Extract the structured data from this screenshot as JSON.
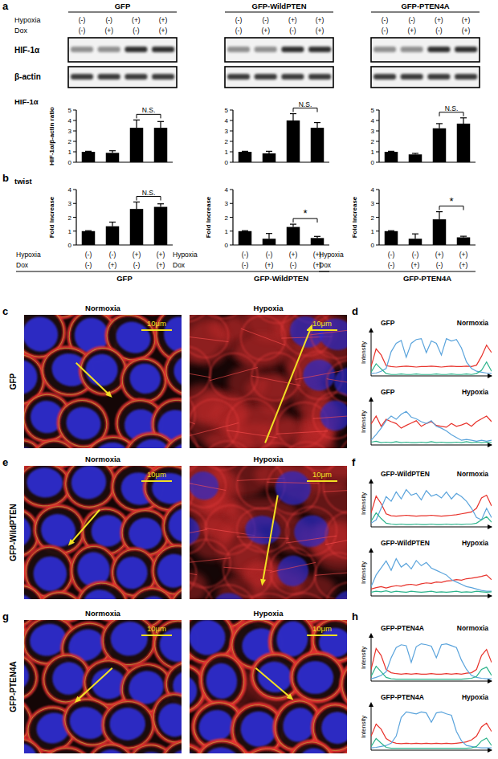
{
  "figure": {
    "panel_labels": [
      "a",
      "b",
      "c",
      "d",
      "e",
      "f",
      "g",
      "h"
    ],
    "blot": {
      "groups": [
        "GFP",
        "GFP-WildPTEN",
        "GFP-PTEN4A"
      ],
      "row_labels": [
        "Hypoxia",
        "Dox"
      ],
      "hypoxia": [
        "(-)",
        "(-)",
        "(+)",
        "(+)"
      ],
      "dox": [
        "(-)",
        "(+)",
        "(-)",
        "(+)"
      ],
      "bands": [
        "HIF-1α",
        "β-actin"
      ]
    },
    "images": {
      "rows": [
        "GFP",
        "GFP-WildPTEN",
        "GFP-PTEN4A"
      ],
      "columns": [
        "Normoxia",
        "Hypoxia"
      ],
      "scale_bar": "10μm"
    }
  },
  "chart_data": [
    {
      "type": "bar",
      "title": "HIF-1α",
      "y_label": "HIF-1α/β-actin ratio",
      "categories": [
        null,
        null,
        null,
        null
      ],
      "values": [
        1,
        0.9,
        3.3,
        3.3
      ],
      "errors": [
        0.05,
        0.2,
        0.75,
        0.6
      ],
      "color": "#000000",
      "ylim": [
        0,
        5
      ],
      "yticks": [
        0,
        1,
        2,
        3,
        4,
        5
      ],
      "annotations": [
        {
          "text": "N.S.",
          "categories": [
            2,
            3
          ]
        }
      ]
    },
    {
      "type": "bar",
      "categories": [
        null,
        null,
        null,
        null
      ],
      "values": [
        1,
        0.85,
        4.0,
        3.3
      ],
      "errors": [
        0.05,
        0.2,
        0.65,
        0.5
      ],
      "color": "#000000",
      "ylim": [
        0,
        5
      ],
      "yticks": [
        0,
        1,
        2,
        3,
        4,
        5
      ],
      "annotations": [
        {
          "text": "N.S.",
          "categories": [
            2,
            3
          ]
        }
      ]
    },
    {
      "type": "bar",
      "categories": [
        null,
        null,
        null,
        null
      ],
      "values": [
        1,
        0.75,
        3.25,
        3.7
      ],
      "errors": [
        0.05,
        0.1,
        0.45,
        0.55
      ],
      "color": "#000000",
      "ylim": [
        0,
        5
      ],
      "yticks": [
        0,
        1,
        2,
        3,
        4,
        5
      ],
      "annotations": [
        {
          "text": "N.S.",
          "categories": [
            2,
            3
          ]
        }
      ]
    },
    {
      "type": "bar",
      "title": "twist",
      "y_label": "Fold Increase",
      "x_label": "GFP",
      "categories": [
        null,
        null,
        null,
        null
      ],
      "values": [
        1,
        1.35,
        2.6,
        2.75
      ],
      "errors": [
        0.03,
        0.3,
        0.5,
        0.22
      ],
      "color": "#000000",
      "ylim": [
        0,
        4
      ],
      "yticks": [
        0,
        1,
        2,
        3,
        4
      ],
      "annotations": [
        {
          "text": "N.S.",
          "categories": [
            2,
            3
          ]
        }
      ]
    },
    {
      "type": "bar",
      "y_label": "Fold Increase",
      "x_label": "GFP-WildPTEN",
      "categories": [
        null,
        null,
        null,
        null
      ],
      "values": [
        1,
        0.45,
        1.3,
        0.5
      ],
      "errors": [
        0.03,
        0.38,
        0.2,
        0.12
      ],
      "color": "#000000",
      "ylim": [
        0,
        4
      ],
      "yticks": [
        0,
        1,
        2,
        3,
        4
      ],
      "annotations": [
        {
          "text": "*",
          "categories": [
            2,
            3
          ]
        }
      ]
    },
    {
      "type": "bar",
      "y_label": "Fold Increase",
      "x_label": "GFP-PTEN4A",
      "categories": [
        null,
        null,
        null,
        null
      ],
      "values": [
        1,
        0.45,
        1.85,
        0.55
      ],
      "errors": [
        0.03,
        0.35,
        0.55,
        0.08
      ],
      "color": "#000000",
      "ylim": [
        0,
        4
      ],
      "yticks": [
        0,
        1,
        2,
        3,
        4
      ],
      "annotations": [
        {
          "text": "*",
          "categories": [
            2,
            3
          ]
        }
      ]
    },
    {
      "type": "line",
      "title": "GFP",
      "subtitle": "Normoxia",
      "y_label": "Intensity",
      "x": [
        0,
        1,
        2,
        3,
        4,
        5,
        6,
        7,
        8,
        9,
        10,
        11,
        12,
        13,
        14,
        15,
        16,
        17,
        18,
        19,
        20,
        21,
        22,
        23,
        24
      ],
      "xlim": [
        0,
        24
      ],
      "ylim": [
        0,
        100
      ],
      "tick_labels": false,
      "series": [
        {
          "color": "#e8322b",
          "values": [
            20,
            58,
            45,
            22,
            20,
            19,
            20,
            21,
            20,
            19,
            20,
            20,
            21,
            20,
            19,
            20,
            21,
            20,
            20,
            21,
            20,
            23,
            42,
            66,
            50
          ]
        },
        {
          "color": "#5ba4dc",
          "values": [
            5,
            6,
            10,
            16,
            52,
            70,
            76,
            40,
            70,
            78,
            80,
            50,
            75,
            70,
            45,
            80,
            75,
            78,
            60,
            30,
            16,
            10,
            8,
            6,
            5
          ]
        },
        {
          "color": "#2db48c",
          "values": [
            8,
            26,
            15,
            5,
            3,
            3,
            4,
            3,
            3,
            4,
            3,
            3,
            3,
            4,
            3,
            3,
            4,
            3,
            3,
            4,
            3,
            5,
            12,
            30,
            10
          ]
        }
      ]
    },
    {
      "type": "line",
      "title": "GFP",
      "subtitle": "Hypoxia",
      "y_label": "Intensity",
      "x": [
        0,
        1,
        2,
        3,
        4,
        5,
        6,
        7,
        8,
        9,
        10,
        11,
        12,
        13,
        14,
        15,
        16,
        17,
        18,
        19,
        20,
        21,
        22,
        23,
        24
      ],
      "xlim": [
        0,
        24
      ],
      "ylim": [
        0,
        100
      ],
      "tick_labels": false,
      "series": [
        {
          "color": "#e8322b",
          "values": [
            45,
            62,
            40,
            55,
            50,
            46,
            36,
            42,
            47,
            52,
            40,
            46,
            50,
            42,
            40,
            38,
            46,
            40,
            43,
            47,
            40,
            50,
            56,
            62,
            50
          ]
        },
        {
          "color": "#5ba4dc",
          "values": [
            10,
            22,
            36,
            52,
            62,
            55,
            66,
            72,
            60,
            56,
            50,
            46,
            52,
            40,
            36,
            30,
            22,
            16,
            10,
            12,
            10,
            8,
            10,
            8,
            10
          ]
        },
        {
          "color": "#2db48c",
          "values": [
            6,
            8,
            5,
            6,
            5,
            7,
            5,
            6,
            5,
            5,
            6,
            5,
            7,
            5,
            6,
            5,
            5,
            6,
            5,
            7,
            5,
            6,
            5,
            6,
            5
          ]
        }
      ]
    },
    {
      "type": "line",
      "title": "GFP-WildPTEN",
      "subtitle": "Normoxia",
      "y_label": "Intensity",
      "x": [
        0,
        1,
        2,
        3,
        4,
        5,
        6,
        7,
        8,
        9,
        10,
        11,
        12,
        13,
        14,
        15,
        16,
        17,
        18,
        19,
        20,
        21,
        22,
        23,
        24
      ],
      "xlim": [
        0,
        24
      ],
      "ylim": [
        0,
        100
      ],
      "tick_labels": false,
      "series": [
        {
          "color": "#e8322b",
          "values": [
            30,
            66,
            50,
            28,
            24,
            23,
            24,
            25,
            24,
            23,
            24,
            24,
            25,
            24,
            23,
            24,
            25,
            26,
            28,
            30,
            32,
            40,
            62,
            68,
            45
          ]
        },
        {
          "color": "#5ba4dc",
          "values": [
            8,
            15,
            40,
            65,
            55,
            75,
            60,
            80,
            68,
            72,
            58,
            78,
            66,
            70,
            62,
            75,
            60,
            72,
            65,
            55,
            40,
            20,
            15,
            40,
            20
          ]
        },
        {
          "color": "#2db48c",
          "values": [
            12,
            30,
            18,
            8,
            6,
            5,
            6,
            5,
            5,
            6,
            5,
            5,
            6,
            5,
            5,
            6,
            5,
            6,
            5,
            6,
            6,
            8,
            15,
            22,
            10
          ]
        }
      ]
    },
    {
      "type": "line",
      "title": "GFP-WildPTEN",
      "subtitle": "Hypoxia",
      "y_label": "Intensity",
      "x": [
        0,
        1,
        2,
        3,
        4,
        5,
        6,
        7,
        8,
        9,
        10,
        11,
        12,
        13,
        14,
        15,
        16,
        17,
        18,
        19,
        20,
        21,
        22,
        23,
        24
      ],
      "xlim": [
        0,
        24
      ],
      "ylim": [
        0,
        100
      ],
      "tick_labels": false,
      "series": [
        {
          "color": "#e8322b",
          "values": [
            15,
            18,
            20,
            17,
            20,
            22,
            21,
            24,
            25,
            23,
            26,
            28,
            27,
            30,
            29,
            32,
            33,
            35,
            34,
            37,
            38,
            40,
            42,
            45,
            35
          ]
        },
        {
          "color": "#5ba4dc",
          "values": [
            20,
            45,
            60,
            75,
            55,
            80,
            62,
            70,
            58,
            76,
            65,
            72,
            60,
            55,
            50,
            45,
            35,
            30,
            25,
            20,
            18,
            15,
            12,
            10,
            10
          ]
        },
        {
          "color": "#2db48c",
          "values": [
            8,
            10,
            9,
            11,
            8,
            10,
            9,
            8,
            10,
            9,
            8,
            9,
            10,
            8,
            9,
            8,
            9,
            10,
            8,
            9,
            8,
            10,
            9,
            8,
            9
          ]
        }
      ]
    },
    {
      "type": "line",
      "title": "GFP-PTEN4A",
      "subtitle": "Normoxia",
      "y_label": "Intensity",
      "x": [
        0,
        1,
        2,
        3,
        4,
        5,
        6,
        7,
        8,
        9,
        10,
        11,
        12,
        13,
        14,
        15,
        16,
        17,
        18,
        19,
        20,
        21,
        22,
        23,
        24
      ],
      "xlim": [
        0,
        24
      ],
      "ylim": [
        0,
        100
      ],
      "tick_labels": false,
      "series": [
        {
          "color": "#e8322b",
          "values": [
            25,
            70,
            55,
            25,
            18,
            16,
            15,
            16,
            15,
            16,
            15,
            15,
            16,
            15,
            15,
            16,
            15,
            16,
            15,
            17,
            18,
            25,
            55,
            68,
            40
          ]
        },
        {
          "color": "#5ba4dc",
          "values": [
            5,
            8,
            12,
            20,
            50,
            72,
            78,
            76,
            40,
            74,
            80,
            78,
            75,
            50,
            78,
            80,
            76,
            72,
            45,
            25,
            12,
            8,
            6,
            5,
            5
          ]
        },
        {
          "color": "#2db48c",
          "values": [
            10,
            32,
            20,
            8,
            5,
            4,
            4,
            4,
            4,
            4,
            4,
            4,
            4,
            4,
            4,
            4,
            4,
            4,
            4,
            5,
            6,
            10,
            25,
            30,
            12
          ]
        }
      ]
    },
    {
      "type": "line",
      "title": "GFP-PTEN4A",
      "subtitle": "Hypoxia",
      "y_label": "Intensity",
      "x": [
        0,
        1,
        2,
        3,
        4,
        5,
        6,
        7,
        8,
        9,
        10,
        11,
        12,
        13,
        14,
        15,
        16,
        17,
        18,
        19,
        20,
        21,
        22,
        23,
        24
      ],
      "xlim": [
        0,
        24
      ],
      "ylim": [
        0,
        100
      ],
      "tick_labels": false,
      "series": [
        {
          "color": "#e8322b",
          "values": [
            30,
            56,
            45,
            25,
            18,
            15,
            14,
            15,
            14,
            15,
            14,
            15,
            14,
            15,
            14,
            15,
            14,
            15,
            16,
            18,
            22,
            30,
            50,
            58,
            40
          ]
        },
        {
          "color": "#5ba4dc",
          "values": [
            5,
            6,
            8,
            10,
            15,
            30,
            70,
            82,
            80,
            78,
            82,
            80,
            60,
            80,
            82,
            78,
            75,
            40,
            20,
            10,
            8,
            6,
            5,
            5,
            5
          ]
        },
        {
          "color": "#2db48c",
          "values": [
            8,
            25,
            15,
            6,
            4,
            4,
            4,
            4,
            4,
            4,
            4,
            4,
            4,
            4,
            4,
            4,
            4,
            4,
            4,
            4,
            5,
            8,
            20,
            26,
            10
          ]
        }
      ]
    }
  ]
}
